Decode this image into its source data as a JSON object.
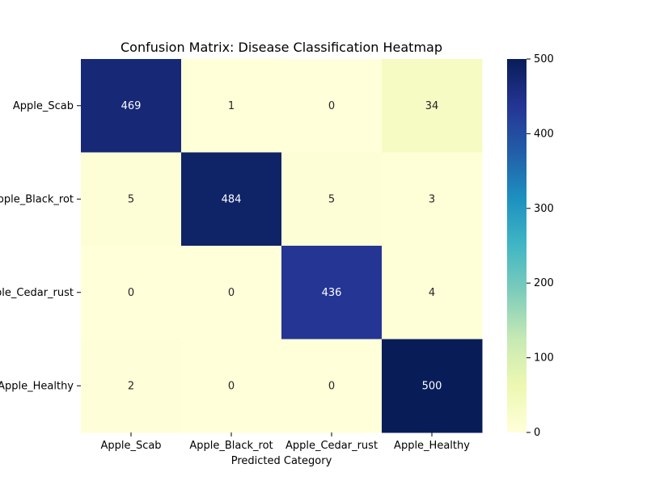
{
  "chart_data": {
    "type": "heatmap",
    "title": "Confusion Matrix: Disease Classification Heatmap",
    "xlabel": "Predicted Category",
    "ylabel": "",
    "x_categories": [
      "Apple_Scab",
      "Apple_Black_rot",
      "Apple_Cedar_rust",
      "Apple_Healthy"
    ],
    "y_categories": [
      "Apple_Scab",
      "Apple_Black_rot",
      "Apple_Cedar_rust",
      "Apple_Healthy"
    ],
    "values": [
      [
        469,
        1,
        0,
        34
      ],
      [
        5,
        484,
        5,
        3
      ],
      [
        0,
        0,
        436,
        4
      ],
      [
        2,
        0,
        0,
        500
      ]
    ],
    "colormap": "YlGnBu",
    "vmin": 0,
    "vmax": 500,
    "colorbar_ticks": [
      0,
      100,
      200,
      300,
      400,
      500
    ],
    "annotations": true
  }
}
